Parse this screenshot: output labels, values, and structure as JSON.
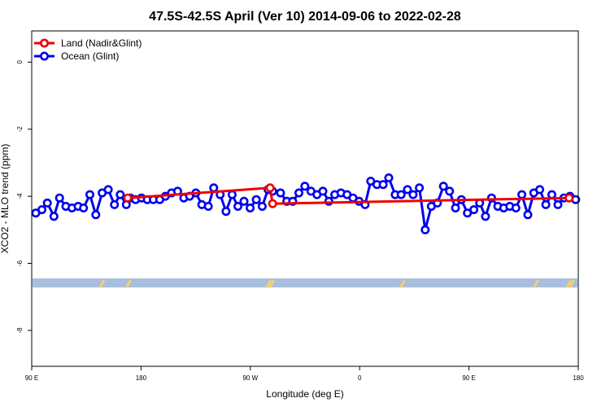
{
  "chart_data": {
    "type": "line",
    "title": "47.5S-42.5S April (Ver 10)   2014-09-06 to 2022-02-28",
    "xlabel": "Longitude (deg E)",
    "ylabel": "XCO2 - MLO trend (ppm)",
    "xlim": [
      90,
      450
    ],
    "ylim": [
      -9.07,
      0.93
    ],
    "x_ticks": [
      {
        "value": 90,
        "label": "90 E"
      },
      {
        "value": 162,
        "label": "180"
      },
      {
        "value": 234,
        "label": "90 W"
      },
      {
        "value": 306,
        "label": "0"
      },
      {
        "value": 378,
        "label": "90 E"
      },
      {
        "value": 450,
        "label": "180"
      }
    ],
    "y_ticks": [
      0,
      -2,
      -4,
      -6,
      -8
    ],
    "grid": false,
    "legend_position": "top-left",
    "series": [
      {
        "name": "Land (Nadir&Glint)",
        "color": "#ee0000",
        "x": [
          153.2,
          247.0,
          248.7,
          444.0
        ],
        "y": [
          -4.05,
          -3.75,
          -4.22,
          -4.05
        ]
      },
      {
        "name": "Ocean (Glint)",
        "color": "#0000ee",
        "x": [
          92.7,
          96.7,
          100.3,
          104.6,
          108.3,
          112.5,
          116.5,
          120.6,
          124.1,
          128.3,
          132.2,
          136.4,
          140.4,
          144.5,
          148.3,
          152.3,
          155.0,
          158.4,
          162.3,
          166.1,
          170.1,
          174.3,
          178.0,
          182.1,
          186.1,
          190.2,
          194.0,
          198.1,
          202.0,
          206.3,
          209.9,
          214.1,
          218.0,
          222.0,
          225.8,
          229.8,
          233.9,
          237.9,
          241.8,
          245.6,
          248.7,
          253.9,
          258.0,
          261.9,
          266.0,
          269.9,
          273.9,
          277.9,
          281.8,
          285.7,
          289.6,
          293.7,
          297.7,
          301.6,
          305.6,
          309.6,
          313.3,
          317.4,
          321.5,
          325.2,
          329.4,
          333.3,
          337.5,
          341.2,
          345.3,
          349.2,
          353.2,
          357.2,
          361.2,
          365.2,
          369.1,
          373.0,
          377.0,
          381.2,
          385.0,
          388.9,
          392.9,
          397.0,
          400.9,
          404.9,
          408.9,
          412.8,
          416.8,
          420.7,
          424.6,
          428.6,
          432.6,
          436.6,
          440.5,
          444.5,
          448.3
        ],
        "y": [
          -4.5,
          -4.4,
          -4.2,
          -4.6,
          -4.05,
          -4.3,
          -4.35,
          -4.3,
          -4.35,
          -3.95,
          -4.55,
          -3.9,
          -3.8,
          -4.25,
          -3.95,
          -4.25,
          -4.05,
          -4.1,
          -4.05,
          -4.1,
          -4.1,
          -4.1,
          -4.0,
          -3.9,
          -3.85,
          -4.05,
          -4.0,
          -3.9,
          -4.25,
          -4.3,
          -3.75,
          -3.95,
          -4.45,
          -3.95,
          -4.3,
          -4.15,
          -4.35,
          -4.1,
          -4.3,
          -3.8,
          -3.85,
          -3.9,
          -4.15,
          -4.15,
          -3.9,
          -3.7,
          -3.85,
          -3.95,
          -3.85,
          -4.15,
          -3.95,
          -3.9,
          -3.95,
          -4.05,
          -4.15,
          -4.25,
          -3.55,
          -3.65,
          -3.65,
          -3.45,
          -3.95,
          -3.95,
          -3.8,
          -3.95,
          -3.75,
          -5.0,
          -4.3,
          -4.2,
          -3.7,
          -3.85,
          -4.35,
          -4.1,
          -4.5,
          -4.4,
          -4.2,
          -4.6,
          -4.05,
          -4.3,
          -4.35,
          -4.3,
          -4.35,
          -3.95,
          -4.55,
          -3.9,
          -3.8,
          -4.25,
          -3.95,
          -4.25,
          -4.05,
          -4.0,
          -4.1
        ]
      }
    ],
    "land_strip_y": [
      -6.45,
      -6.72
    ],
    "land_strip_color": "#a8bedd",
    "land_mark_color": "#f5d070",
    "land_marks_x": [
      136.0,
      153.5,
      246.0,
      248.0,
      334.0,
      422.0,
      443.5,
      445.5
    ]
  }
}
